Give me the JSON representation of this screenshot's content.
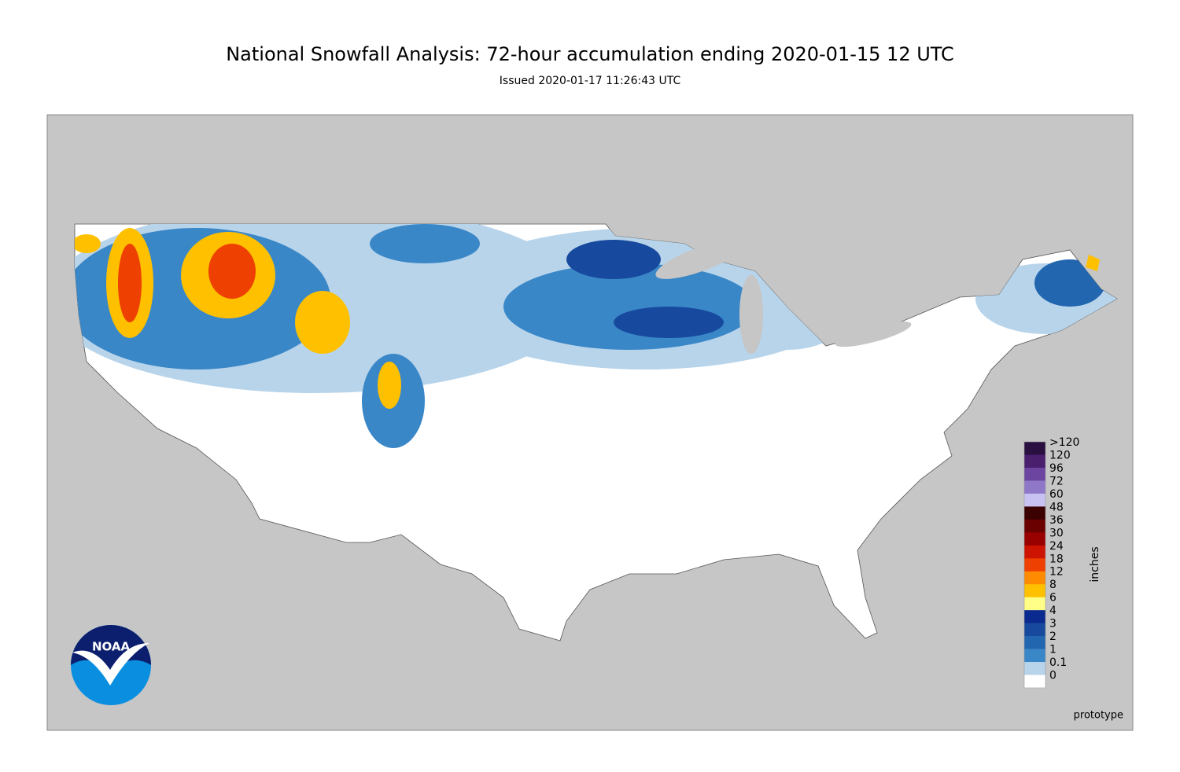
{
  "header": {
    "title": "National Snowfall Analysis: 72-hour accumulation ending 2020-01-15 12 UTC",
    "subtitle": "Issued 2020-01-17 11:26:43 UTC"
  },
  "legend": {
    "unit": "inches",
    "items": [
      {
        "label": ">120",
        "color": "#2a1040"
      },
      {
        "label": "120",
        "color": "#4a1f6e"
      },
      {
        "label": "96",
        "color": "#6b45a0"
      },
      {
        "label": "72",
        "color": "#8f78c8"
      },
      {
        "label": "60",
        "color": "#c8c2f2"
      },
      {
        "label": "48",
        "color": "#3b0000"
      },
      {
        "label": "36",
        "color": "#6b0000"
      },
      {
        "label": "30",
        "color": "#990000"
      },
      {
        "label": "24",
        "color": "#cc1400"
      },
      {
        "label": "18",
        "color": "#ee4000"
      },
      {
        "label": "12",
        "color": "#ff8c00"
      },
      {
        "label": "8",
        "color": "#ffc000"
      },
      {
        "label": "6",
        "color": "#ffff88"
      },
      {
        "label": "4",
        "color": "#0b2a8f"
      },
      {
        "label": "3",
        "color": "#174a9e"
      },
      {
        "label": "2",
        "color": "#2266b0"
      },
      {
        "label": "1",
        "color": "#3a87c8"
      },
      {
        "label": "0.1",
        "color": "#b8d4ea"
      },
      {
        "label": "0",
        "color": "#ffffff"
      }
    ]
  },
  "note": "prototype",
  "logo": {
    "text": "NOAA"
  }
}
